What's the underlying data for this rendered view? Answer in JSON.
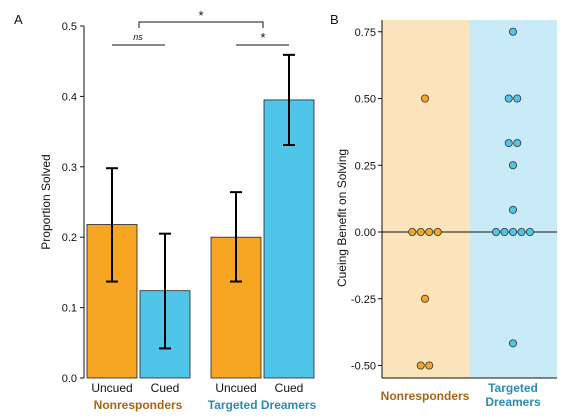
{
  "colors": {
    "orange": "#f6a623",
    "blue": "#4fc6e9",
    "nonresponder_text": "#a86414",
    "dreamer_text": "#2a8cb4",
    "bg_orange": "#fbe3bc",
    "bg_blue": "#c9eaf7"
  },
  "chart_data": [
    {
      "panel_label": "A",
      "type": "bar",
      "ylabel": "Proportion Solved",
      "ylim": [
        0,
        0.5
      ],
      "yticks": [
        "0.0",
        "0.1",
        "0.2",
        "0.3",
        "0.4",
        "0.5"
      ],
      "groups": [
        "Nonresponders",
        "Targeted Dreamers"
      ],
      "categories": [
        "Uncued",
        "Cued",
        "Uncued",
        "Cued"
      ],
      "bars": [
        {
          "group": "Nonresponders",
          "condition": "Uncued",
          "value": 0.218,
          "err_low": 0.137,
          "err_high": 0.298,
          "color": "orange"
        },
        {
          "group": "Nonresponders",
          "condition": "Cued",
          "value": 0.124,
          "err_low": 0.042,
          "err_high": 0.205,
          "color": "blue"
        },
        {
          "group": "Targeted Dreamers",
          "condition": "Uncued",
          "value": 0.2,
          "err_low": 0.137,
          "err_high": 0.264,
          "color": "orange"
        },
        {
          "group": "Targeted Dreamers",
          "condition": "Cued",
          "value": 0.395,
          "err_low": 0.331,
          "err_high": 0.459,
          "color": "blue"
        }
      ],
      "significance": [
        {
          "label": "ns",
          "between": [
            0,
            1
          ]
        },
        {
          "label": "*",
          "between": [
            2,
            3
          ]
        },
        {
          "label": "*",
          "between": [
            "Nonresponders",
            "Targeted Dreamers"
          ]
        }
      ]
    },
    {
      "panel_label": "B",
      "type": "scatter",
      "ylabel": "Cueing Benefit on Solving",
      "ylim": [
        -0.52,
        0.79
      ],
      "yticks": [
        "-0.50",
        "-0.25",
        "0.00",
        "0.25",
        "0.50",
        "0.75"
      ],
      "reference_line": 0,
      "groups": [
        "Nonresponders",
        "Targeted Dreamers"
      ],
      "series": [
        {
          "name": "Nonresponders",
          "color": "orange",
          "background": "bg_orange",
          "points": [
            {
              "y": 0.5,
              "offset": 0
            },
            {
              "y": 0.0,
              "offset": -1.5
            },
            {
              "y": 0.0,
              "offset": -0.5
            },
            {
              "y": 0.0,
              "offset": 0.5
            },
            {
              "y": 0.0,
              "offset": 1.5
            },
            {
              "y": -0.25,
              "offset": 0
            },
            {
              "y": -0.5,
              "offset": -0.5
            },
            {
              "y": -0.5,
              "offset": 0.5
            }
          ]
        },
        {
          "name": "Targeted Dreamers",
          "color": "blue",
          "background": "bg_blue",
          "points": [
            {
              "y": 0.75,
              "offset": 0
            },
            {
              "y": 0.5,
              "offset": -0.5
            },
            {
              "y": 0.5,
              "offset": 0.5
            },
            {
              "y": 0.333,
              "offset": -0.5
            },
            {
              "y": 0.333,
              "offset": 0.5
            },
            {
              "y": 0.25,
              "offset": 0
            },
            {
              "y": 0.083,
              "offset": 0
            },
            {
              "y": 0.0,
              "offset": -2
            },
            {
              "y": 0.0,
              "offset": -1
            },
            {
              "y": 0.0,
              "offset": 0
            },
            {
              "y": 0.0,
              "offset": 1
            },
            {
              "y": 0.0,
              "offset": 2
            },
            {
              "y": -0.417,
              "offset": 0
            }
          ]
        }
      ]
    }
  ]
}
